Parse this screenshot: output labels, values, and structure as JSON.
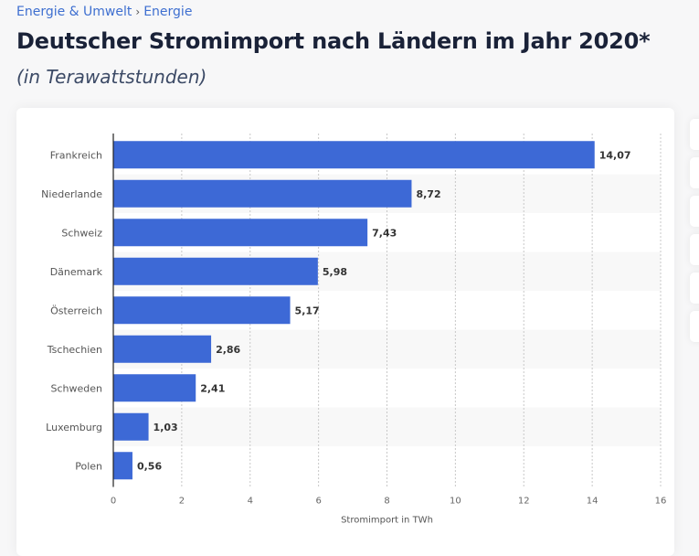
{
  "breadcrumb": {
    "items": [
      "Energie & Umwelt",
      "Energie"
    ],
    "separator": "›"
  },
  "header": {
    "title": "Deutscher Stromimport nach Ländern im Jahr 2020*",
    "subtitle": "(in Terawattstunden)"
  },
  "colors": {
    "bar": "#3d69d6",
    "link": "#3e6fd0",
    "title": "#1a2238"
  },
  "chart_data": {
    "type": "bar",
    "orientation": "horizontal",
    "title": "Deutscher Stromimport nach Ländern im Jahr 2020*",
    "subtitle": "(in Terawattstunden)",
    "categories": [
      "Frankreich",
      "Niederlande",
      "Schweiz",
      "Dänemark",
      "Österreich",
      "Tschechien",
      "Schweden",
      "Luxemburg",
      "Polen"
    ],
    "values": [
      14.07,
      8.72,
      7.43,
      5.98,
      5.17,
      2.86,
      2.41,
      1.03,
      0.56
    ],
    "value_labels": [
      "14,07",
      "8,72",
      "7,43",
      "5,98",
      "5,17",
      "2,86",
      "2,41",
      "1,03",
      "0,56"
    ],
    "xlabel": "Stromimport in TWh",
    "ylabel": "",
    "xlim": [
      0,
      16
    ],
    "xticks": [
      0,
      2,
      4,
      6,
      8,
      10,
      12,
      14,
      16
    ],
    "xtick_labels": [
      "0",
      "2",
      "4",
      "6",
      "8",
      "10",
      "12",
      "14",
      "16"
    ],
    "grid": true,
    "legend": "none"
  }
}
